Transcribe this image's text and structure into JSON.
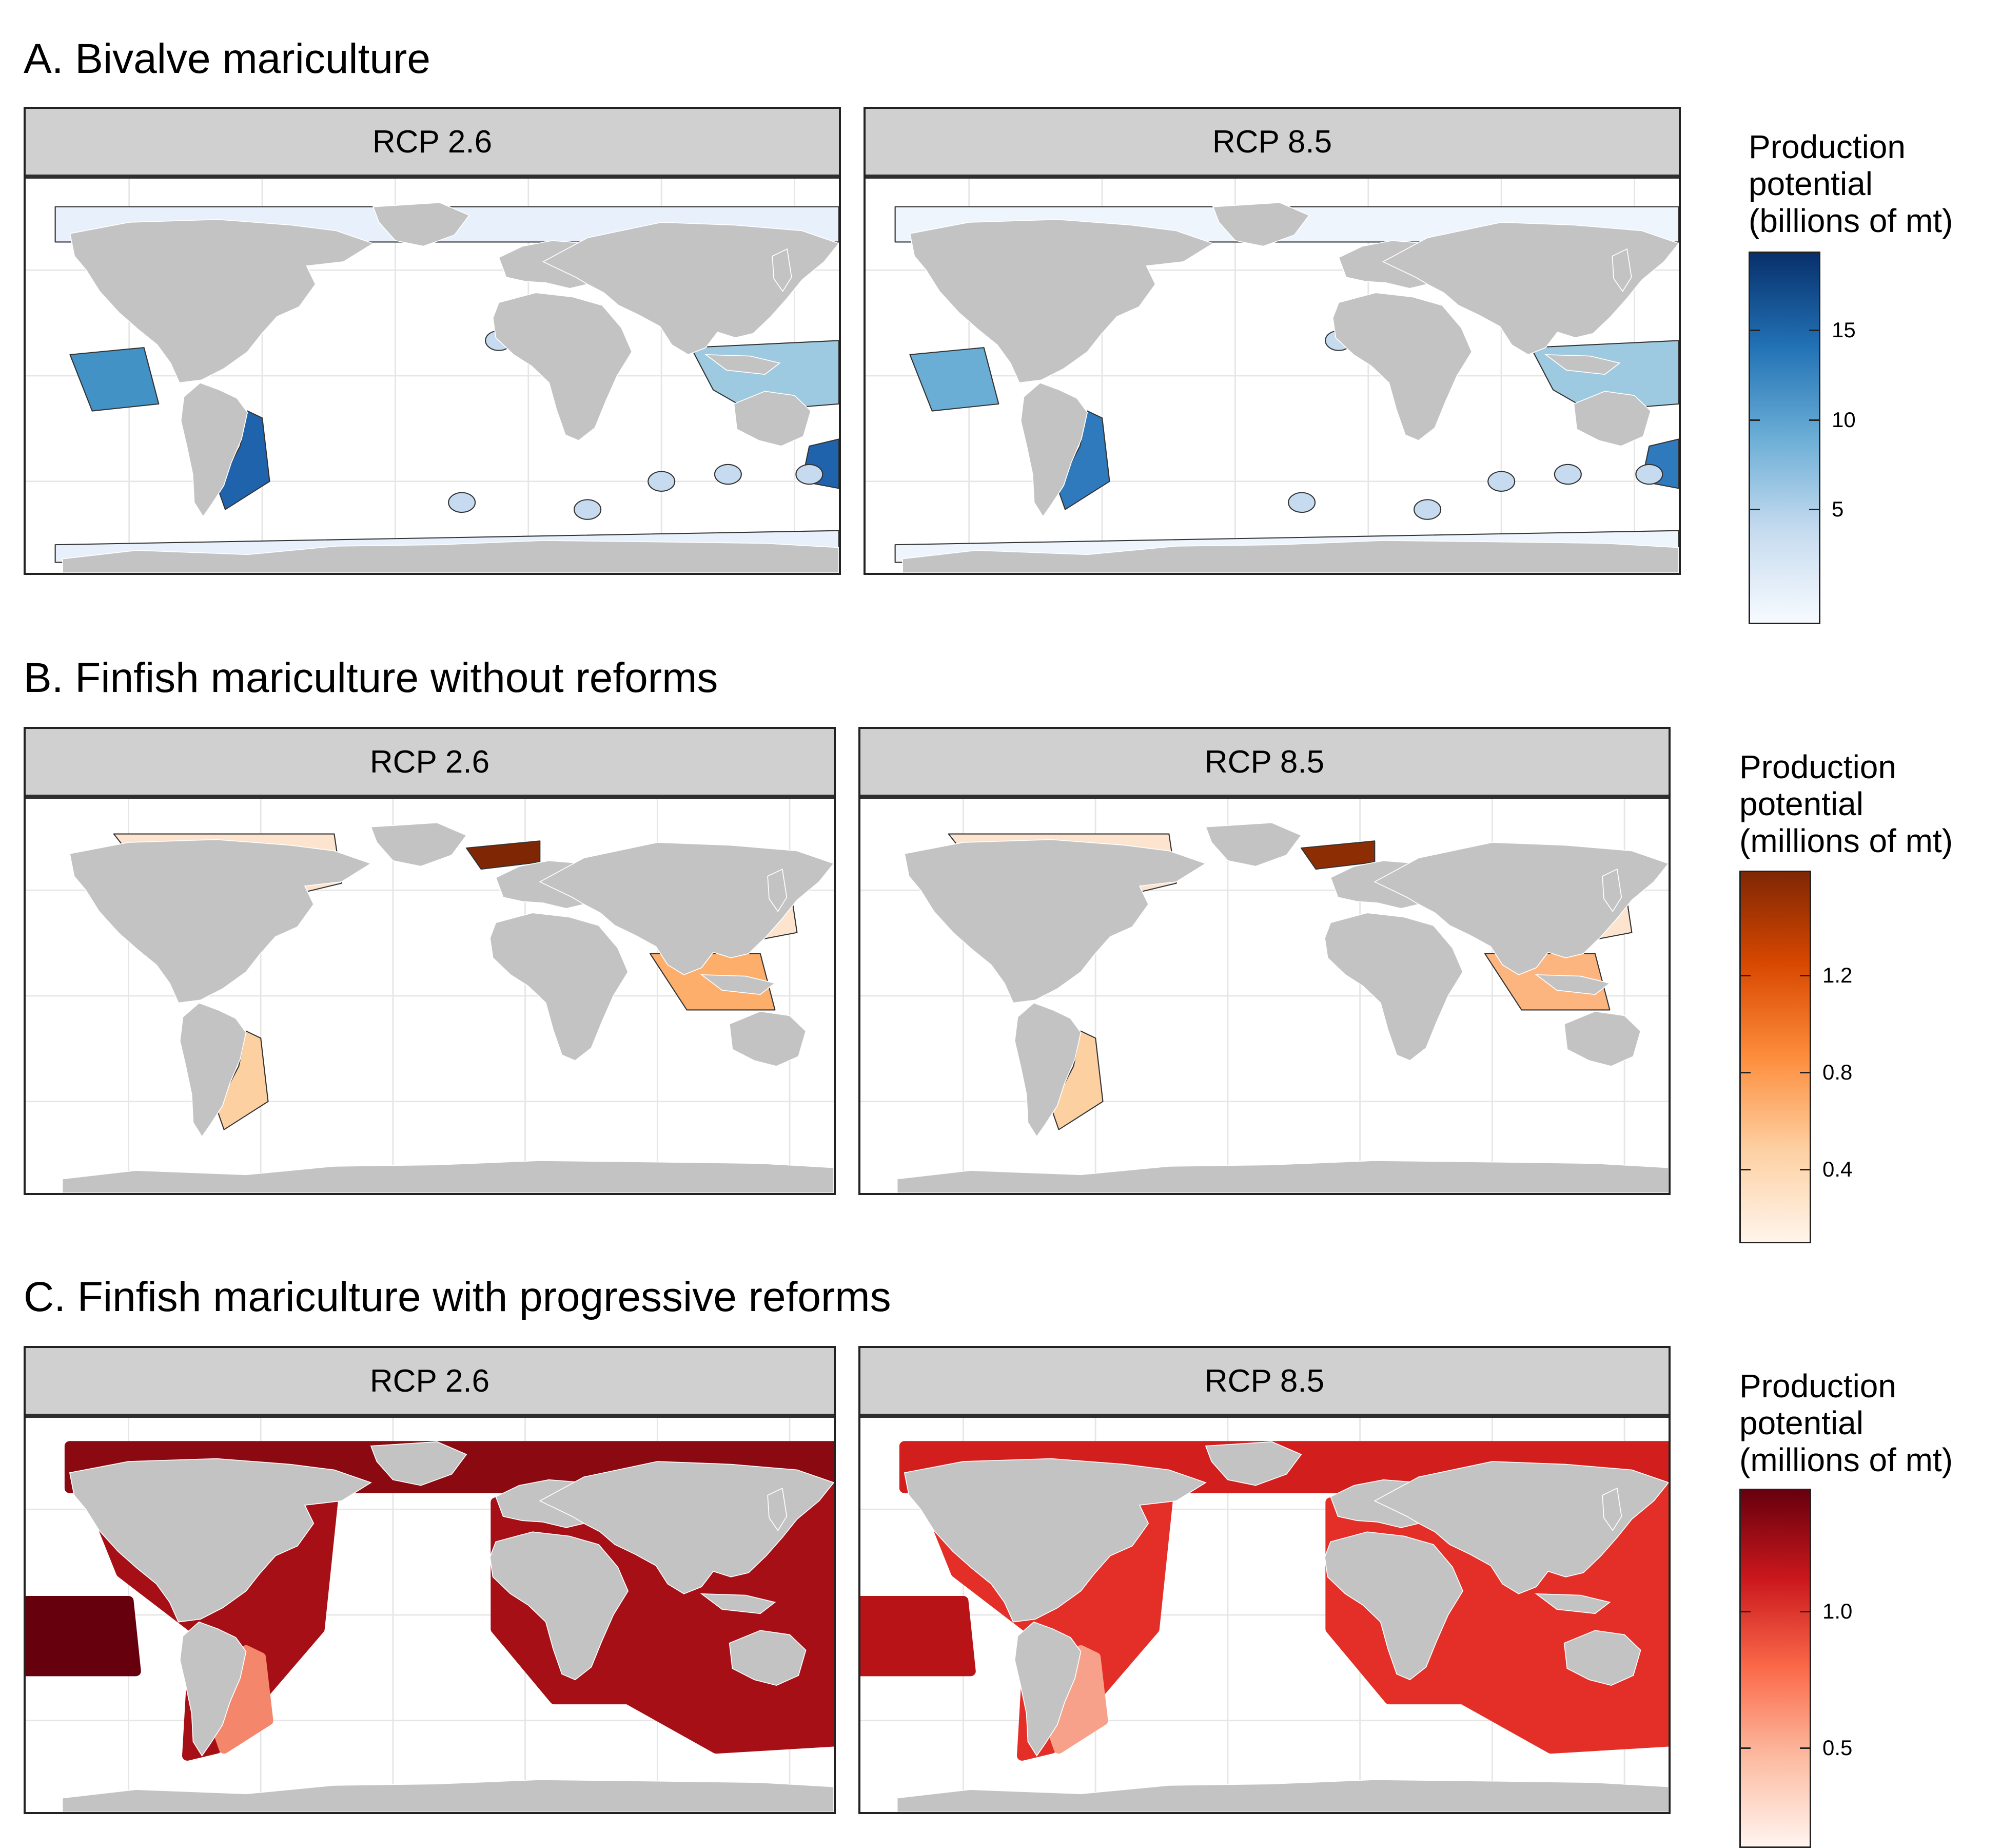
{
  "sections": [
    {
      "title": "A. Bivalve mariculture",
      "panels": [
        {
          "label": "RCP 2.6",
          "palette": [
            "#e8f1fb",
            "#c6dbef",
            "#9ecae1",
            "#4292c6",
            "#1f63ad",
            "#08306b"
          ]
        },
        {
          "label": "RCP 8.5",
          "palette": [
            "#eef5fc",
            "#c6dbef",
            "#9ecae1",
            "#6aaed6",
            "#2f79bd",
            "#1e5aa0"
          ]
        }
      ],
      "legend": {
        "title": "Production\npotential\n(billions of mt)",
        "gradient": [
          "#f7fbff",
          "#c6dbef",
          "#6baed6",
          "#2171b5",
          "#08306b"
        ],
        "ticks": [
          "5",
          "10",
          "15"
        ],
        "tick_fracs": [
          0.31,
          0.55,
          0.79
        ]
      }
    },
    {
      "title": "B. Finfish mariculture without reforms",
      "panels": [
        {
          "label": "RCP 2.6",
          "palette": [
            "#fde4cf",
            "#fdd0a2",
            "#fdae6b",
            "#f16913",
            "#c0410b",
            "#7f2704"
          ]
        },
        {
          "label": "RCP 8.5",
          "palette": [
            "#fde4cf",
            "#fdd0a2",
            "#fdb580",
            "#f7873e",
            "#d94801",
            "#8c2d04"
          ]
        }
      ],
      "legend": {
        "title": "Production\npotential\n(millions of mt)",
        "gradient": [
          "#fff5eb",
          "#fdd0a2",
          "#fd8d3c",
          "#d94801",
          "#7f2704"
        ],
        "ticks": [
          "0.4",
          "0.8",
          "1.2"
        ],
        "tick_fracs": [
          0.2,
          0.46,
          0.72
        ]
      }
    },
    {
      "title": "C. Finfish mariculture with progressive reforms",
      "panels": [
        {
          "label": "RCP 2.6",
          "palette": [
            "#fcbba1",
            "#f4866b",
            "#cb181d",
            "#a50f15",
            "#8b0a12",
            "#67000d"
          ]
        },
        {
          "label": "RCP 8.5",
          "palette": [
            "#fcd5c4",
            "#f8a18a",
            "#f6553f",
            "#e32f27",
            "#d31e1e",
            "#b81418"
          ]
        }
      ],
      "legend": {
        "title": "Production\npotential\n(millions of mt)",
        "gradient": [
          "#fff5f0",
          "#fcbba1",
          "#fb6a4a",
          "#cb181d",
          "#67000d"
        ],
        "ticks": [
          "0.5",
          "1.0"
        ],
        "tick_fracs": [
          0.28,
          0.66
        ]
      }
    }
  ],
  "land_color": "#c3c3c3",
  "graticule_color": "#e6e6e6"
}
